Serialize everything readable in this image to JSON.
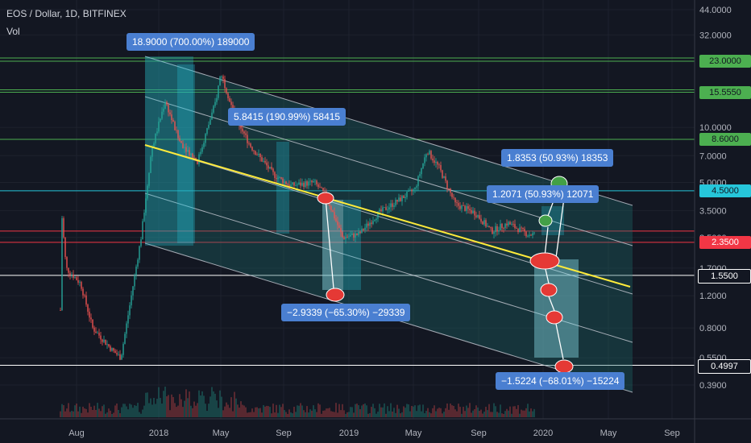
{
  "header": {
    "symbol_line": "EOS / Dollar, 1D, BITFINEX",
    "volume_label": "Vol"
  },
  "chart_data": {
    "type": "candlestick",
    "y_scale": "log",
    "y_ticks": [
      "44.0000",
      "32.0000",
      "10.0000",
      "7.0000",
      "5.0000",
      "3.5000",
      "2.5000",
      "1.7000",
      "1.2000",
      "0.8000",
      "0.5500",
      "0.3900"
    ],
    "x_ticks": [
      "Aug",
      "2018",
      "May",
      "Sep",
      "2019",
      "May",
      "Sep",
      "2020",
      "May",
      "Sep"
    ],
    "price_levels": [
      {
        "label": "23.0000",
        "color": "#4caf50"
      },
      {
        "label": "15.5550",
        "color": "#4caf50"
      },
      {
        "label": "8.6000",
        "color": "#4caf50"
      },
      {
        "label": "4.5000",
        "color": "#26c6da"
      },
      {
        "label": "2.3500",
        "color": "#f23645"
      },
      {
        "label": "1.5500",
        "color": "#ffffff"
      },
      {
        "label": "0.4997",
        "color": "#ffffff"
      }
    ],
    "annotations": [
      "18.9000 (700.00%) 189000",
      "5.8415 (190.99%) 58415",
      "1.8353 (50.93%) 18353",
      "1.2071 (50.93%) 12071",
      "−2.9339 (−65.30%) −29339",
      "−1.5224 (−68.01%) −15224"
    ],
    "trend_channel": "descending",
    "colors": {
      "up": "#26a69a",
      "down": "#ef5350",
      "trendline": "#ffeb3b",
      "label_box": "#4a7fd1"
    }
  }
}
